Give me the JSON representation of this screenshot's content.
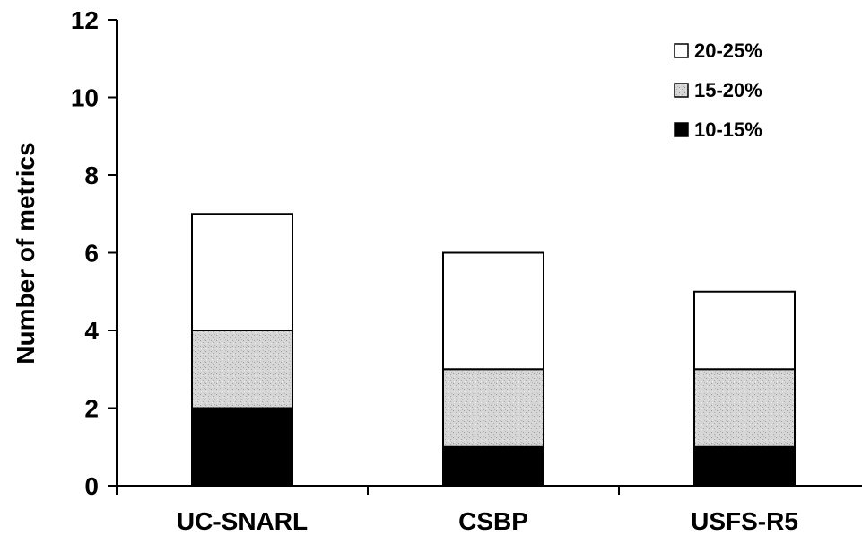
{
  "chart_data": {
    "type": "bar",
    "stacked": true,
    "categories": [
      "UC-SNARL",
      "CSBP",
      "USFS-R5"
    ],
    "series": [
      {
        "name": "10-15%",
        "values": [
          2,
          1,
          1
        ],
        "color": "#000000"
      },
      {
        "name": "15-20%",
        "values": [
          2,
          2,
          2
        ],
        "color": "#d4d4d4"
      },
      {
        "name": "20-25%",
        "values": [
          3,
          3,
          2
        ],
        "color": "#ffffff"
      }
    ],
    "title": "",
    "xlabel": "",
    "ylabel": "Number of metrics",
    "ylim": [
      0,
      12
    ],
    "yticks": [
      0,
      2,
      4,
      6,
      8,
      10,
      12
    ],
    "legend": {
      "position": "top-right",
      "order": [
        "20-25%",
        "15-20%",
        "10-15%"
      ]
    },
    "grid": false
  }
}
